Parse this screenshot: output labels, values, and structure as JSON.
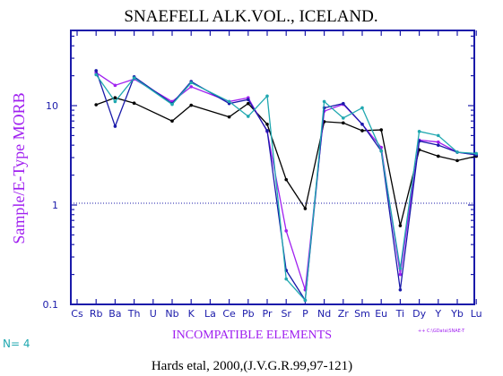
{
  "chart_data": {
    "type": "line",
    "title": "SNAEFELL ALK.VOL., ICELAND.",
    "xlabel": "INCOMPATIBLE ELEMENTS",
    "ylabel": "Sample/E-Type MORB",
    "yscale": "log",
    "ylim": [
      0.1,
      50
    ],
    "y_ticks": [
      "0.1",
      "1",
      "10"
    ],
    "reference_line": 1,
    "categories": [
      "Cs",
      "Rb",
      "Ba",
      "Th",
      "U",
      "Nb",
      "K",
      "La",
      "Ce",
      "Pb",
      "Pr",
      "Sr",
      "P",
      "Nd",
      "Zr",
      "Sm",
      "Eu",
      "Ti",
      "Dy",
      "Y",
      "Yb",
      "Lu"
    ],
    "series": [
      {
        "color": "#000000",
        "values": [
          null,
          10.2,
          12,
          10.6,
          null,
          7,
          10.1,
          null,
          7.7,
          10.5,
          6.5,
          1.8,
          0.92,
          6.9,
          6.7,
          5.6,
          5.7,
          0.62,
          3.6,
          3.1,
          2.8,
          3.1
        ]
      },
      {
        "color": "#a020f0",
        "values": [
          null,
          21.5,
          16,
          18.5,
          null,
          11,
          15.5,
          null,
          11,
          12,
          5.5,
          0.55,
          0.14,
          8.8,
          10.3,
          6.5,
          3.8,
          0.2,
          4.5,
          4.3,
          3.4,
          3.2
        ]
      },
      {
        "color": "#1a1aaa",
        "values": [
          null,
          22.5,
          6.2,
          19.5,
          null,
          10.5,
          17.5,
          null,
          10.5,
          11.5,
          5.6,
          0.22,
          0.11,
          9.5,
          10.5,
          6.5,
          3.5,
          0.14,
          4.4,
          4,
          3.4,
          3.2
        ]
      },
      {
        "color": "#20a8b0",
        "values": [
          null,
          20.5,
          11,
          19,
          null,
          10.3,
          17,
          null,
          11,
          7.8,
          12.5,
          0.18,
          0.11,
          11,
          7.5,
          9.5,
          3.5,
          0.23,
          5.5,
          5,
          3.4,
          3.3
        ]
      }
    ],
    "grid": false
  },
  "annotations": {
    "n_label": "N= 4",
    "source_ref": "++ C:\\GData\\SNAE-T",
    "citation": "Hards etal, 2000,(J.V.G.R.99,97-121)"
  }
}
